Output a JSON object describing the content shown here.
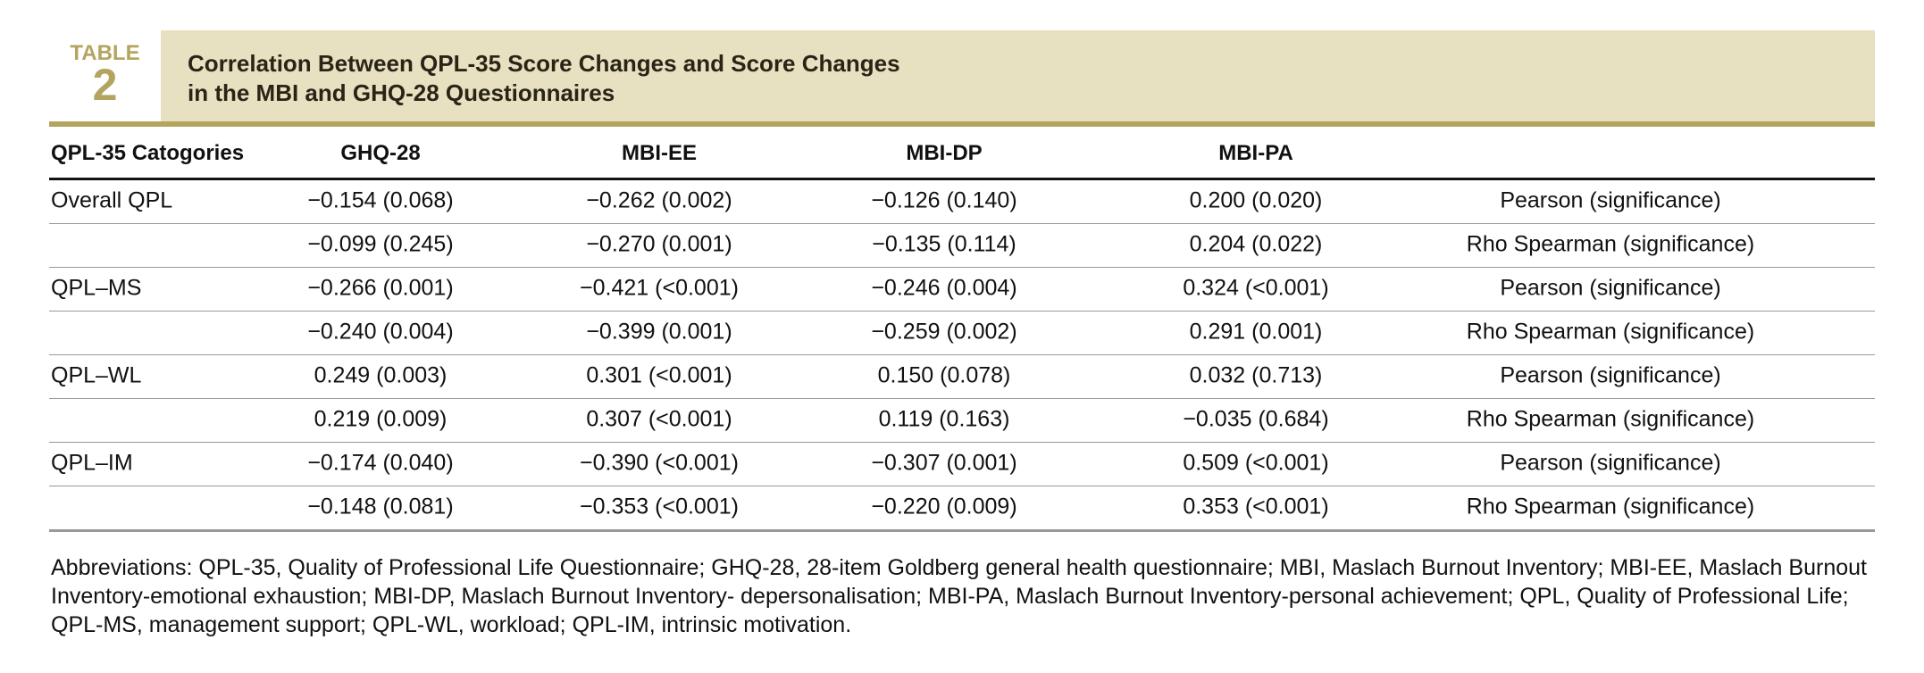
{
  "header": {
    "label": "TABLE",
    "number": "2",
    "title_lines": [
      "Correlation Between QPL-35 Score Changes and Score Changes",
      "in the MBI and GHQ-28 Questionnaires"
    ]
  },
  "table": {
    "columns": [
      "QPL-35 Catogories",
      "GHQ-28",
      "MBI-EE",
      "MBI-DP",
      "MBI-PA"
    ],
    "rows": [
      [
        "Overall QPL",
        "−0.154 (0.068)",
        "−0.262 (0.002)",
        "−0.126 (0.140)",
        "0.200 (0.020)",
        "Pearson (significance)"
      ],
      [
        null,
        "−0.099 (0.245)",
        "−0.270 (0.001)",
        "−0.135 (0.114)",
        "0.204 (0.022)",
        "Rho Spearman (significance)"
      ],
      [
        "QPL–MS",
        "−0.266 (0.001)",
        "−0.421 (<0.001)",
        "−0.246 (0.004)",
        "0.324 (<0.001)",
        "Pearson (significance)"
      ],
      [
        null,
        "−0.240 (0.004)",
        "−0.399 (0.001)",
        "−0.259 (0.002)",
        "0.291 (0.001)",
        "Rho Spearman (significance)"
      ],
      [
        "QPL–WL",
        "0.249 (0.003)",
        "0.301 (<0.001)",
        "0.150 (0.078)",
        "0.032 (0.713)",
        "Pearson (significance)"
      ],
      [
        null,
        "0.219 (0.009)",
        "0.307 (<0.001)",
        "0.119 (0.163)",
        "−0.035 (0.684)",
        "Rho Spearman (significance)"
      ],
      [
        "QPL–IM",
        "−0.174 (0.040)",
        "−0.390 (<0.001)",
        "−0.307 (0.001)",
        "0.509 (<0.001)",
        "Pearson (significance)"
      ],
      [
        null,
        "−0.148 (0.081)",
        "−0.353 (<0.001)",
        "−0.220 (0.009)",
        "0.353 (<0.001)",
        "Rho Spearman (significance)"
      ]
    ]
  },
  "footnote": "Abbreviations: QPL-35, Quality of Professional Life Questionnaire; GHQ-28, 28-item Goldberg general health questionnaire; MBI, Maslach Burnout Inventory; MBI-EE, Maslach Burnout Inventory-emotional exhaustion; MBI-DP, Maslach Burnout Inventory- depersonalisation; MBI-PA, Maslach Burnout Inventory-personal achievement; QPL, Quality of Professional Life; QPL-MS, management support; QPL-WL, workload; QPL-IM, intrinsic motivation."
}
